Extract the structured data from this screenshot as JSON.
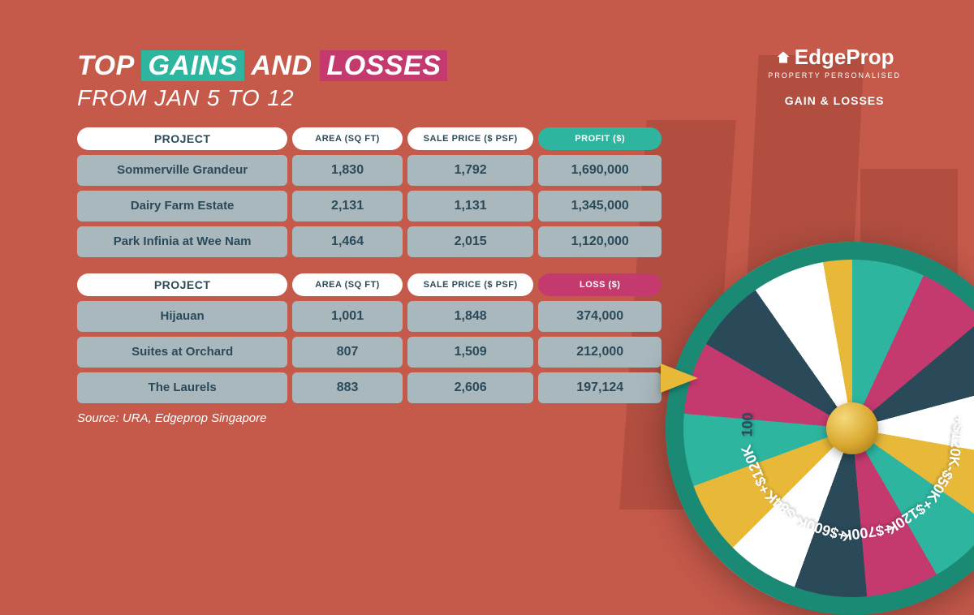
{
  "title": {
    "top": "TOP",
    "gains": "GAINS",
    "and": "AND",
    "losses": "LOSSES",
    "subtitle": "FROM JAN 5 TO 12"
  },
  "colors": {
    "bg": "#c5594a",
    "gains": "#2eb5a0",
    "losses": "#c43a6f",
    "cell": "#a9b8bd",
    "celltext": "#2a4a5a"
  },
  "gains_table": {
    "headers": {
      "project": "PROJECT",
      "area": "AREA (SQ FT)",
      "psf": "SALE PRICE ($ PSF)",
      "profit": "PROFIT ($)"
    },
    "rows": [
      {
        "project": "Sommerville Grandeur",
        "area": "1,830",
        "psf": "1,792",
        "profit": "1,690,000"
      },
      {
        "project": "Dairy Farm Estate",
        "area": "2,131",
        "psf": "1,131",
        "profit": "1,345,000"
      },
      {
        "project": "Park Infinia at Wee Nam",
        "area": "1,464",
        "psf": "2,015",
        "profit": "1,120,000"
      }
    ]
  },
  "losses_table": {
    "headers": {
      "project": "PROJECT",
      "area": "AREA (SQ FT)",
      "psf": "SALE PRICE ($ PSF)",
      "loss": "LOSS ($)"
    },
    "rows": [
      {
        "project": "Hijauan",
        "area": "1,001",
        "psf": "1,848",
        "profit": "374,000"
      },
      {
        "project": "Suites at Orchard",
        "area": "807",
        "psf": "1,509",
        "profit": "212,000"
      },
      {
        "project": "The Laurels",
        "area": "883",
        "psf": "2,606",
        "profit": "197,124"
      }
    ]
  },
  "source": "Source: URA, Edgeprop Singapore",
  "brand": {
    "name": "EdgeProp",
    "tag": "PROPERTY PERSONALISED",
    "sub": "GAIN & LOSSES"
  },
  "wheel": {
    "segments": [
      {
        "label": "+$700K",
        "color": "#2a4a5a",
        "angle": 172
      },
      {
        "label": "+$600K",
        "color": "#2eb5a0",
        "angle": 197
      },
      {
        "label": "-$84K",
        "color": "#c43a6f",
        "angle": 222
      },
      {
        "label": "+$120K",
        "color": "#2eb5a0",
        "angle": 247
      },
      {
        "label": "100",
        "color": "#ffffff",
        "angle": 272,
        "text_color": "#2a4a5a"
      },
      {
        "label": "+$120K",
        "color": "#2eb5a0",
        "angle": 147
      },
      {
        "label": "-$50K",
        "color": "#c43a6f",
        "angle": 122
      },
      {
        "label": "+$120K",
        "color": "#2eb5a0",
        "angle": 97
      },
      {
        "label": "",
        "color": "#c43a6f",
        "angle": 72
      },
      {
        "label": "",
        "color": "#2eb5a0",
        "angle": 47
      }
    ],
    "segment_width": 25,
    "radius": 208
  }
}
